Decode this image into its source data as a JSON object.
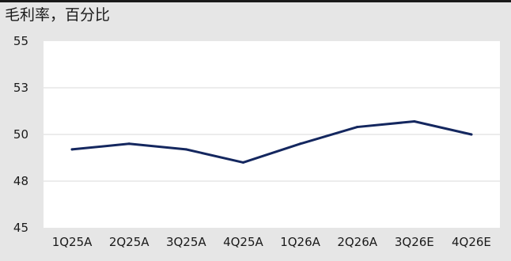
{
  "chart_data": {
    "type": "line",
    "title": "毛利率，百分比",
    "xlabel": "",
    "ylabel": "",
    "categories": [
      "1Q25A",
      "2Q25A",
      "3Q25A",
      "4Q25A",
      "1Q26A",
      "2Q26A",
      "3Q26E",
      "4Q26E"
    ],
    "series": [
      {
        "values": [
          49.2,
          49.5,
          49.2,
          48.5,
          49.5,
          50.4,
          50.7,
          50.0
        ]
      }
    ],
    "y_ticks": [
      "55",
      "53",
      "50",
      "48",
      "45"
    ],
    "ylim": [
      45,
      55
    ],
    "grid": true,
    "legend": "none",
    "line_color": "#14275f",
    "plot_background": "#ffffff",
    "frame_background": "#e6e6e6"
  }
}
